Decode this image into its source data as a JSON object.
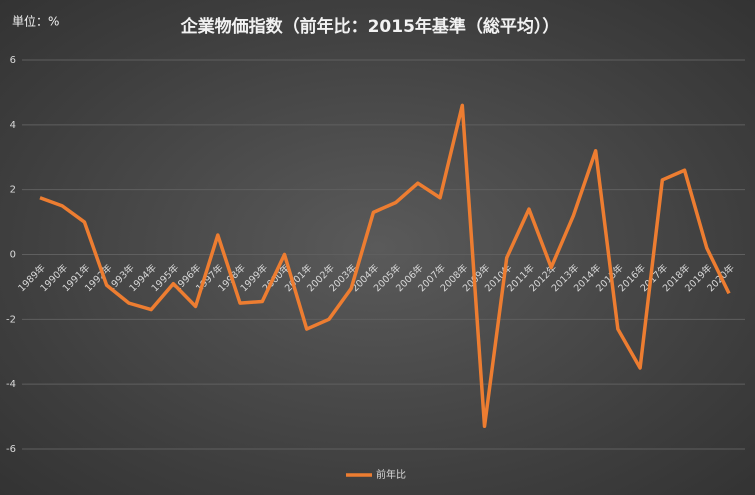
{
  "chart_data": {
    "type": "line",
    "title": "企業物価指数（前年比：2015年基準（総平均））",
    "unit_label": "単位：%",
    "categories": [
      "1989年",
      "1990年",
      "1991年",
      "1992年",
      "1993年",
      "1994年",
      "1995年",
      "1996年",
      "1997年",
      "1998年",
      "1999年",
      "2000年",
      "2001年",
      "2002年",
      "2003年",
      "2004年",
      "2005年",
      "2006年",
      "2007年",
      "2008年",
      "2009年",
      "2010年",
      "2011年",
      "2012年",
      "2013年",
      "2014年",
      "2015年",
      "2016年",
      "2017年",
      "2018年",
      "2019年",
      "2020年"
    ],
    "series": [
      {
        "name": "前年比",
        "color": "#ed7d31",
        "values": [
          1.75,
          1.5,
          1.0,
          -0.95,
          -1.5,
          -1.7,
          -0.9,
          -1.6,
          0.6,
          -1.5,
          -1.45,
          0,
          -2.3,
          -2.0,
          -1.05,
          1.3,
          1.6,
          2.2,
          1.75,
          4.6,
          -5.3,
          -0.1,
          1.4,
          -0.4,
          1.2,
          3.2,
          -2.3,
          -3.5,
          2.3,
          2.6,
          0.2,
          -1.2
        ]
      }
    ],
    "ylim": [
      -6,
      6
    ],
    "yticks": [
      -6,
      -4,
      -2,
      0,
      2,
      4,
      6
    ],
    "grid": true,
    "legend": "bottom"
  }
}
